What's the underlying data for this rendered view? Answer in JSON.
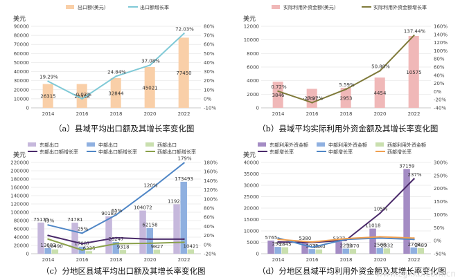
{
  "chart_data": [
    {
      "id": "a",
      "type": "bar",
      "caption": "（a）县域平均出口额及其增长率变化图",
      "ylabel": "美元",
      "categories": [
        "2014",
        "2016",
        "2018",
        "2020",
        "2022"
      ],
      "series": [
        {
          "name": "出口额(美元)",
          "kind": "bar",
          "axis": "left",
          "color": "#f9cfa8",
          "values": [
            26315,
            26308,
            32844,
            45021,
            77450
          ],
          "labels": [
            "26315",
            "26308",
            "32844",
            "45021",
            "77450"
          ]
        },
        {
          "name": "出口额增长率",
          "kind": "line",
          "axis": "right",
          "color": "#7fc9d6",
          "values": [
            19.29,
            -0.03,
            24.84,
            37.08,
            72.03
          ],
          "labels": [
            "19.29%",
            "-0.03%",
            "24.84%",
            "37.08%",
            "72.03%"
          ]
        }
      ],
      "yleft": {
        "min": 0,
        "max": 90000,
        "step": 10000,
        "ticks": [
          "0",
          "10000",
          "20000",
          "30000",
          "40000",
          "50000",
          "60000",
          "70000",
          "80000",
          "90000"
        ]
      },
      "yright": {
        "min": -10,
        "max": 80,
        "step": 10,
        "ticks": [
          "-10%",
          "0%",
          "10%",
          "20%",
          "30%",
          "40%",
          "50%",
          "60%",
          "70%",
          "80%"
        ]
      }
    },
    {
      "id": "b",
      "type": "bar",
      "caption": "（b）县域平均实际利用外资金额及其增长率变化图",
      "ylabel": "美元",
      "categories": [
        "2014",
        "2016",
        "2018",
        "2020",
        "2022"
      ],
      "series": [
        {
          "name": "实际利用外资金额(美元)",
          "kind": "bar",
          "axis": "left",
          "color": "#f0b8b8",
          "values": [
            3846,
            2797,
            2953,
            4454,
            10575
          ],
          "labels": [
            "3846",
            "2797",
            "2953",
            "4454",
            "10575"
          ]
        },
        {
          "name": "实际利用外资金额增长率",
          "kind": "line",
          "axis": "right",
          "color": "#7f7a3a",
          "values": [
            0.72,
            -27.27,
            5.59,
            50.8,
            137.44
          ],
          "labels": [
            "0.72%",
            "-27.27%",
            "5.59%",
            "50.80%",
            "137.44%"
          ]
        }
      ],
      "yleft": {
        "min": 0,
        "max": 12000,
        "step": 2000,
        "ticks": [
          "0",
          "2000",
          "4000",
          "6000",
          "8000",
          "10000",
          "12000"
        ]
      },
      "yright": {
        "min": -40,
        "max": 160,
        "step": 20,
        "ticks": [
          "-40%",
          "-20%",
          "0%",
          "20%",
          "40%",
          "60%",
          "80%",
          "100%",
          "120%",
          "140%",
          "160%"
        ]
      }
    },
    {
      "id": "c",
      "type": "bar",
      "caption": "（c）分地区县域平均出口额及其增长率变化图",
      "ylabel": "美元",
      "categories": [
        "2014",
        "2016",
        "2018",
        "2020",
        "2022"
      ],
      "series": [
        {
          "name": "东部出口",
          "kind": "bar",
          "axis": "left",
          "color": "#c6b8dc",
          "values": [
            75175,
            74781,
            90183,
            104072,
            119285
          ],
          "labels": [
            "75175",
            "74781",
            "90183",
            "104072",
            "119285"
          ]
        },
        {
          "name": "中部出口",
          "kind": "bar",
          "axis": "left",
          "color": "#8fb0e0",
          "values": [
            13683,
            17087,
            28247,
            62158,
            173493
          ],
          "labels": [
            "13683",
            "17087",
            "28247",
            "62158",
            "173493"
          ]
        },
        {
          "name": "西部出口",
          "kind": "bar",
          "axis": "left",
          "color": "#c9dfae",
          "values": [
            10490,
            6235,
            9318,
            9827,
            10421
          ],
          "labels": [
            "10490",
            "6235",
            "9318",
            "9827",
            "10421"
          ]
        },
        {
          "name": "东部出口额增长率",
          "kind": "line",
          "axis": "right",
          "color": "#4a2a6a",
          "values": [
            20,
            2,
            15,
            12,
            12
          ],
          "labels": [
            "",
            "",
            "",
            "",
            ""
          ]
        },
        {
          "name": "中部出口额增长率",
          "kind": "line",
          "axis": "right",
          "color": "#4f86c6",
          "values": [
            43,
            25,
            65,
            120,
            179
          ],
          "labels": [
            "43%",
            "25%",
            "65%",
            "120%",
            "179%"
          ]
        },
        {
          "name": "西部出口额增长率",
          "kind": "line",
          "axis": "right",
          "color": "#8aa04a",
          "values": [
            12,
            -12,
            2,
            3,
            5
          ],
          "labels": [
            "",
            "",
            "",
            "",
            ""
          ]
        }
      ],
      "yleft": {
        "min": 0,
        "max": 220000,
        "step": 20000,
        "ticks": [
          "0",
          "20000",
          "40000",
          "60000",
          "80000",
          "100000",
          "120000",
          "140000",
          "160000",
          "180000",
          "200000",
          "220000"
        ]
      },
      "yright": {
        "min": -20,
        "max": 180,
        "step": 20,
        "ticks": [
          "-20%",
          "0%",
          "20%",
          "40%",
          "60%",
          "80%",
          "100%",
          "120%",
          "140%",
          "160%",
          "180%"
        ]
      }
    },
    {
      "id": "d",
      "type": "bar",
      "caption": "（d）分地区县域平均利用外资金额及其增长率变化图",
      "ylabel": "美元",
      "categories": [
        "2014",
        "2016",
        "2018",
        "2020",
        "2022"
      ],
      "series": [
        {
          "name": "东部利用外资金额",
          "kind": "bar",
          "axis": "left",
          "color": "#a48cc4",
          "values": [
            5765,
            5380,
            5377,
            11018,
            37159
          ],
          "labels": [
            "5765",
            "5380",
            "5377",
            "11018",
            "37159"
          ]
        },
        {
          "name": "中部利用外资金额",
          "kind": "bar",
          "axis": "left",
          "color": "#8fb0e0",
          "values": [
            2987,
            2075,
            2253,
            2568,
            2748
          ],
          "labels": [
            "2987",
            "2075",
            "2253",
            "2568",
            "2748"
          ]
        },
        {
          "name": "西部利用外资金额",
          "kind": "bar",
          "axis": "left",
          "color": "#c9dfae",
          "values": [
            2845,
            1880,
            2070,
            2332,
            2489
          ],
          "labels": [
            "2845",
            "1880",
            "2070",
            "2332",
            "2489"
          ]
        },
        {
          "name": "东部增长率",
          "kind": "line",
          "axis": "right",
          "color": "#4a2a6a",
          "values": [
            -5,
            -7,
            2,
            105,
            237
          ],
          "labels": [
            "",
            "",
            "",
            "105%",
            "237%"
          ]
        },
        {
          "name": "中部增长率",
          "kind": "line",
          "axis": "right",
          "color": "#4f86c6",
          "values": [
            10,
            -25,
            5,
            10,
            5
          ],
          "labels": [
            "",
            "",
            "",
            "",
            ""
          ]
        },
        {
          "name": "西部增长率",
          "kind": "line",
          "axis": "right",
          "color": "#f0a050",
          "values": [
            5,
            -5,
            8,
            15,
            10
          ],
          "labels": [
            "",
            "",
            "",
            "",
            ""
          ]
        }
      ],
      "yleft": {
        "min": 0,
        "max": 40000,
        "step": 5000,
        "ticks": [
          "0",
          "5000",
          "10000",
          "15000",
          "20000",
          "25000",
          "30000",
          "35000",
          "40000"
        ]
      },
      "yright": {
        "min": -50,
        "max": 300,
        "step": 50,
        "ticks": [
          "-50%",
          "0%",
          "50%",
          "100%",
          "150%",
          "200%",
          "250%",
          "300%"
        ]
      }
    }
  ],
  "watermark": "www.zgxxb.com.cn"
}
